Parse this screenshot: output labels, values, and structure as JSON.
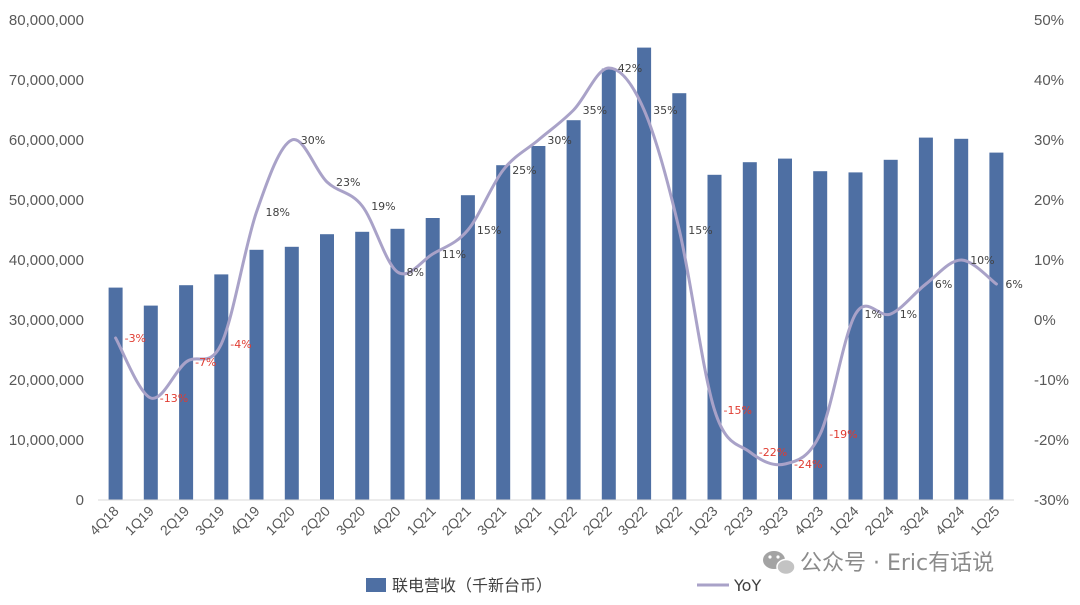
{
  "chart_data": {
    "type": "bar",
    "categories": [
      "4Q18",
      "1Q19",
      "2Q19",
      "3Q19",
      "4Q19",
      "1Q20",
      "2Q20",
      "3Q20",
      "4Q20",
      "1Q21",
      "2Q21",
      "3Q21",
      "4Q21",
      "1Q22",
      "2Q22",
      "3Q22",
      "4Q22",
      "1Q23",
      "2Q23",
      "3Q23",
      "4Q23",
      "1Q24",
      "2Q24",
      "3Q24",
      "4Q24",
      "1Q25"
    ],
    "series": [
      {
        "name": "联电营收（千新台币）",
        "kind": "bar",
        "axis": "left",
        "color": "#4e6fa3",
        "values": [
          35400000,
          32400000,
          35800000,
          37600000,
          41700000,
          42200000,
          44300000,
          44700000,
          45200000,
          47000000,
          50800000,
          55800000,
          59000000,
          63300000,
          71900000,
          75400000,
          67800000,
          54200000,
          56300000,
          56900000,
          54800000,
          54600000,
          56700000,
          60400000,
          60200000,
          57900000
        ]
      },
      {
        "name": "YoY",
        "kind": "line",
        "axis": "right",
        "color": "#a9a2c8",
        "values": [
          -3,
          -13,
          -7,
          -4,
          18,
          30,
          23,
          19,
          8,
          11,
          15,
          25,
          30,
          35,
          42,
          35,
          15,
          -15,
          -22,
          -24,
          -19,
          1,
          1,
          6,
          10,
          6
        ],
        "labels": [
          "-3%",
          "-13%",
          "-7%",
          "-4%",
          "18%",
          "30%",
          "23%",
          "19%",
          "8%",
          "11%",
          "15%",
          "25%",
          "30%",
          "35%",
          "42%",
          "35%",
          "15%",
          "-15%",
          "-22%",
          "-24%",
          "-19%",
          "1%",
          "1%",
          "6%",
          "10%",
          "6%"
        ]
      }
    ],
    "y_left": {
      "min": 0,
      "max": 80000000,
      "ticks": [
        "0",
        "10,000,000",
        "20,000,000",
        "30,000,000",
        "40,000,000",
        "50,000,000",
        "60,000,000",
        "70,000,000",
        "80,000,000"
      ]
    },
    "y_right": {
      "min": -30,
      "max": 50,
      "ticks": [
        "-30%",
        "-20%",
        "-10%",
        "0%",
        "10%",
        "20%",
        "30%",
        "40%",
        "50%"
      ]
    },
    "grid": false,
    "legend_position": "bottom",
    "negative_label_color": "#e03c31",
    "positive_label_color": "#404040"
  },
  "watermark": {
    "text": "公众号 · Eric有话说",
    "icon": "wechat-icon"
  }
}
